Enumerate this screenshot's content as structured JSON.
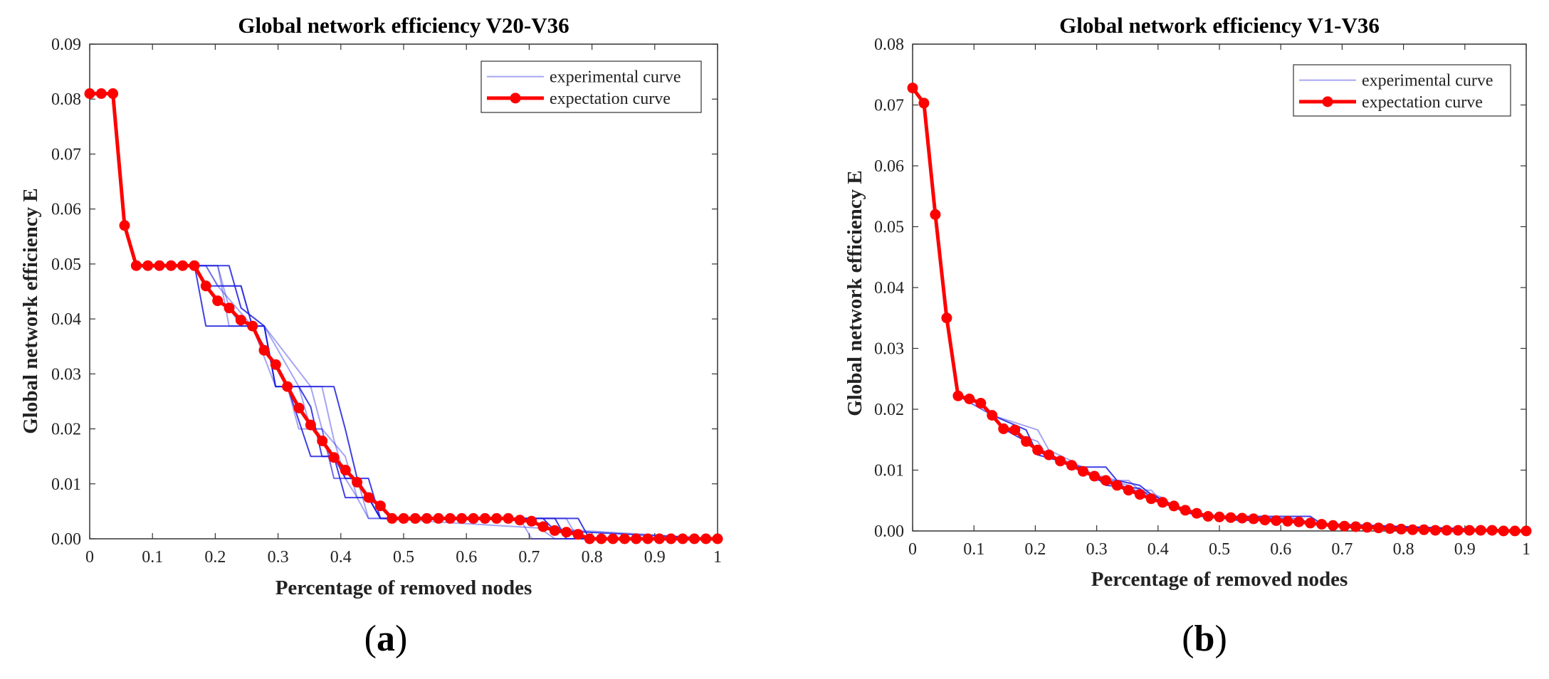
{
  "chart_data": [
    {
      "type": "line",
      "panel_label": "a",
      "title": "Global network efficiency  V20-V36",
      "xlabel": "Percentage of removed nodes",
      "ylabel": "Global network efficiency E",
      "xlim": [
        0,
        1
      ],
      "ylim": [
        0,
        0.09
      ],
      "xticks": [
        "0",
        "0.1",
        "0.2",
        "0.3",
        "0.4",
        "0.5",
        "0.6",
        "0.7",
        "0.8",
        "0.9",
        "1"
      ],
      "yticks": [
        "0.00",
        "0.01",
        "0.02",
        "0.03",
        "0.04",
        "0.05",
        "0.06",
        "0.07",
        "0.08",
        "0.09"
      ],
      "legend": {
        "position": "top-right",
        "entries": [
          "experimental curve",
          "expectation curve"
        ]
      },
      "colors": {
        "experimental": "#1f1fe0",
        "expectation": "#ff0000"
      },
      "series": [
        {
          "name": "expectation curve",
          "x": [
            0,
            0.0185,
            0.037,
            0.0556,
            0.0741,
            0.0926,
            0.1111,
            0.1296,
            0.1481,
            0.1667,
            0.1852,
            0.2037,
            0.2222,
            0.2407,
            0.2593,
            0.2778,
            0.2963,
            0.3148,
            0.3333,
            0.3519,
            0.3704,
            0.3889,
            0.4074,
            0.4259,
            0.4444,
            0.463,
            0.4815,
            0.5,
            0.5185,
            0.537,
            0.5556,
            0.5741,
            0.5926,
            0.6111,
            0.6296,
            0.6481,
            0.6667,
            0.6852,
            0.7037,
            0.7222,
            0.7407,
            0.7593,
            0.7778,
            0.7963,
            0.8148,
            0.8333,
            0.8519,
            0.8704,
            0.8889,
            0.9074,
            0.9259,
            0.9444,
            0.963,
            0.9815,
            1.0
          ],
          "y": [
            0.081,
            0.081,
            0.081,
            0.057,
            0.0497,
            0.0497,
            0.0497,
            0.0497,
            0.0497,
            0.0497,
            0.046,
            0.0433,
            0.042,
            0.0398,
            0.0387,
            0.0343,
            0.0317,
            0.0277,
            0.0238,
            0.0207,
            0.0178,
            0.0148,
            0.0125,
            0.0103,
            0.0075,
            0.006,
            0.0037,
            0.0037,
            0.0037,
            0.0037,
            0.0037,
            0.0037,
            0.0037,
            0.0037,
            0.0037,
            0.0037,
            0.0037,
            0.0034,
            0.0032,
            0.0022,
            0.0015,
            0.0012,
            0.0008,
            0,
            0,
            0,
            0,
            0,
            0,
            0,
            0,
            0,
            0,
            0,
            0
          ]
        },
        {
          "name": "experimental curve",
          "runs": [
            {
              "x": [
                0,
                0.037,
                0.055,
                0.074,
                0.167,
                0.185,
                0.278,
                0.296,
                0.315,
                0.352,
                0.389,
                0.407,
                0.444,
                0.463,
                0.667,
                0.685,
                0.778,
                0.796,
                1.0
              ],
              "y": [
                0.081,
                0.081,
                0.057,
                0.0497,
                0.0497,
                0.0387,
                0.0387,
                0.0277,
                0.0277,
                0.015,
                0.015,
                0.011,
                0.011,
                0.0037,
                0.0037,
                0.0037,
                0.0037,
                0,
                0
              ]
            },
            {
              "x": [
                0,
                0.037,
                0.055,
                0.074,
                0.185,
                0.204,
                0.259,
                0.278,
                0.333,
                0.352,
                0.37,
                0.389,
                0.426,
                0.444,
                0.463,
                0.685,
                0.704,
                0.722,
                1.0
              ],
              "y": [
                0.081,
                0.081,
                0.057,
                0.0497,
                0.0497,
                0.046,
                0.0387,
                0.0387,
                0.0277,
                0.02,
                0.02,
                0.011,
                0.011,
                0.0075,
                0.0037,
                0.0037,
                0,
                0,
                0
              ]
            },
            {
              "x": [
                0,
                0.037,
                0.055,
                0.074,
                0.204,
                0.222,
                0.241,
                0.259,
                0.296,
                0.315,
                0.37,
                0.389,
                0.407,
                0.426,
                0.444,
                0.704,
                0.722,
                0.759,
                0.778,
                1.0
              ],
              "y": [
                0.081,
                0.081,
                0.057,
                0.0497,
                0.0497,
                0.042,
                0.0387,
                0.0387,
                0.0277,
                0.0277,
                0.0277,
                0.018,
                0.011,
                0.0075,
                0.0037,
                0.0037,
                0.0037,
                0.0037,
                0,
                0
              ]
            },
            {
              "x": [
                0,
                0.037,
                0.055,
                0.074,
                0.167,
                0.185,
                0.241,
                0.259,
                0.315,
                0.333,
                0.352,
                0.37,
                0.389,
                0.407,
                0.444,
                0.463,
                0.722,
                0.741,
                1.0
              ],
              "y": [
                0.081,
                0.081,
                0.057,
                0.0497,
                0.0497,
                0.046,
                0.046,
                0.0387,
                0.0277,
                0.0277,
                0.024,
                0.015,
                0.015,
                0.0075,
                0.0075,
                0.0037,
                0.0037,
                0.0015,
                0
              ]
            },
            {
              "x": [
                0,
                0.037,
                0.055,
                0.074,
                0.204,
                0.222,
                0.259,
                0.278,
                0.352,
                0.37,
                0.407,
                0.426,
                0.444,
                0.463,
                0.704,
                0.722,
                0.741,
                1.0
              ],
              "y": [
                0.081,
                0.081,
                0.057,
                0.0497,
                0.0497,
                0.0387,
                0.0387,
                0.0387,
                0.0277,
                0.02,
                0.015,
                0.0075,
                0.0075,
                0.0037,
                0.0037,
                0.0015,
                0,
                0
              ]
            },
            {
              "x": [
                0,
                0.037,
                0.055,
                0.074,
                0.185,
                0.204,
                0.241,
                0.259,
                0.278,
                0.296,
                0.315,
                0.333,
                0.37,
                0.389,
                0.426,
                0.444,
                0.463,
                1.0
              ],
              "y": [
                0.081,
                0.081,
                0.057,
                0.0497,
                0.0497,
                0.046,
                0.046,
                0.0387,
                0.0387,
                0.0277,
                0.0277,
                0.02,
                0.02,
                0.011,
                0.011,
                0.0037,
                0.0037,
                0
              ]
            },
            {
              "x": [
                0,
                0.037,
                0.055,
                0.074,
                0.222,
                0.241,
                0.278,
                0.296,
                0.389,
                0.407,
                0.426,
                0.444,
                0.463,
                0.741,
                0.759,
                1.0
              ],
              "y": [
                0.081,
                0.081,
                0.057,
                0.0497,
                0.0497,
                0.042,
                0.0387,
                0.0277,
                0.0277,
                0.02,
                0.011,
                0.0075,
                0.0037,
                0.0037,
                0,
                0
              ]
            }
          ]
        }
      ]
    },
    {
      "type": "line",
      "panel_label": "b",
      "title": "Global network efficiency  V1-V36",
      "xlabel": "Percentage of removed nodes",
      "ylabel": "Global network efficiency E",
      "xlim": [
        0,
        1
      ],
      "ylim": [
        0,
        0.08
      ],
      "xticks": [
        "0",
        "0.1",
        "0.2",
        "0.3",
        "0.4",
        "0.5",
        "0.6",
        "0.7",
        "0.8",
        "0.9",
        "1"
      ],
      "yticks": [
        "0.00",
        "0.01",
        "0.02",
        "0.03",
        "0.04",
        "0.05",
        "0.06",
        "0.07",
        "0.08"
      ],
      "legend": {
        "position": "top-right",
        "entries": [
          "experimental curve",
          "expectation curve"
        ]
      },
      "colors": {
        "experimental": "#1f1fe0",
        "expectation": "#ff0000"
      },
      "series": [
        {
          "name": "expectation curve",
          "x": [
            0,
            0.0185,
            0.037,
            0.0556,
            0.0741,
            0.0926,
            0.1111,
            0.1296,
            0.1481,
            0.1667,
            0.1852,
            0.2037,
            0.2222,
            0.2407,
            0.2593,
            0.2778,
            0.2963,
            0.3148,
            0.3333,
            0.3519,
            0.3704,
            0.3889,
            0.4074,
            0.4259,
            0.4444,
            0.463,
            0.4815,
            0.5,
            0.5185,
            0.537,
            0.5556,
            0.5741,
            0.5926,
            0.6111,
            0.6296,
            0.6481,
            0.6667,
            0.6852,
            0.7037,
            0.7222,
            0.7407,
            0.7593,
            0.7778,
            0.7963,
            0.8148,
            0.8333,
            0.8519,
            0.8704,
            0.8889,
            0.9074,
            0.9259,
            0.9444,
            0.963,
            0.9815,
            1.0
          ],
          "y": [
            0.0728,
            0.0703,
            0.052,
            0.035,
            0.0222,
            0.0217,
            0.021,
            0.019,
            0.0168,
            0.0166,
            0.0147,
            0.0133,
            0.0125,
            0.0115,
            0.0108,
            0.0098,
            0.009,
            0.0083,
            0.0075,
            0.0067,
            0.006,
            0.0053,
            0.0047,
            0.0041,
            0.0034,
            0.0029,
            0.0024,
            0.0023,
            0.0022,
            0.0021,
            0.002,
            0.0018,
            0.0017,
            0.0016,
            0.0015,
            0.0013,
            0.0011,
            0.0009,
            0.0008,
            0.0007,
            0.0006,
            0.0005,
            0.0004,
            0.0003,
            0.0002,
            0.0002,
            0.0001,
            0.0001,
            0.0001,
            0.0001,
            0.0001,
            0.0001,
            0,
            0,
            0
          ]
        },
        {
          "name": "experimental curve",
          "runs": [
            {
              "x": [
                0,
                0.0185,
                0.037,
                0.0556,
                0.0741,
                0.111,
                0.13,
                0.185,
                0.204,
                0.241,
                0.259,
                0.315,
                0.333,
                0.37,
                0.389,
                0.426,
                0.444,
                0.463,
                0.648,
                0.667,
                1.0
              ],
              "y": [
                0.0728,
                0.0703,
                0.052,
                0.035,
                0.0222,
                0.021,
                0.019,
                0.0166,
                0.0125,
                0.0115,
                0.0105,
                0.0105,
                0.0083,
                0.0075,
                0.006,
                0.0042,
                0.0034,
                0.0024,
                0.0024,
                0.0011,
                0
              ]
            },
            {
              "x": [
                0,
                0.0185,
                0.037,
                0.0556,
                0.0741,
                0.13,
                0.148,
                0.167,
                0.185,
                0.222,
                0.278,
                0.296,
                0.352,
                0.37,
                0.407,
                0.426,
                0.463,
                0.481,
                0.63,
                0.648,
                1.0
              ],
              "y": [
                0.0728,
                0.0703,
                0.052,
                0.035,
                0.0222,
                0.019,
                0.0168,
                0.0166,
                0.0147,
                0.0125,
                0.0105,
                0.0083,
                0.0083,
                0.0067,
                0.0055,
                0.004,
                0.0029,
                0.0024,
                0.002,
                0.0013,
                0
              ]
            },
            {
              "x": [
                0,
                0.0185,
                0.037,
                0.0556,
                0.0741,
                0.111,
                0.13,
                0.204,
                0.222,
                0.259,
                0.278,
                0.333,
                0.352,
                0.389,
                0.407,
                0.444,
                0.463,
                0.611,
                0.63,
                0.7,
                1.0
              ],
              "y": [
                0.0728,
                0.0703,
                0.052,
                0.035,
                0.0222,
                0.021,
                0.019,
                0.0166,
                0.0133,
                0.0115,
                0.0098,
                0.0083,
                0.0067,
                0.0067,
                0.0047,
                0.0034,
                0.0024,
                0.002,
                0.0015,
                0.0008,
                0
              ]
            },
            {
              "x": [
                0,
                0.0185,
                0.037,
                0.0556,
                0.0741,
                0.111,
                0.148,
                0.185,
                0.222,
                0.241,
                0.296,
                0.315,
                0.37,
                0.389,
                0.426,
                0.444,
                0.5,
                0.52,
                0.648,
                0.667,
                1.0
              ],
              "y": [
                0.0728,
                0.0703,
                0.052,
                0.035,
                0.0222,
                0.021,
                0.0168,
                0.0147,
                0.012,
                0.0115,
                0.009,
                0.0075,
                0.007,
                0.0055,
                0.004,
                0.003,
                0.0022,
                0.0018,
                0.0015,
                0.001,
                0
              ]
            },
            {
              "x": [
                0,
                0.0185,
                0.037,
                0.0556,
                0.0741,
                0.13,
                0.148,
                0.204,
                0.222,
                0.278,
                0.296,
                0.352,
                0.37,
                0.407,
                0.426,
                0.463,
                0.481,
                0.63,
                0.648,
                1.0
              ],
              "y": [
                0.0728,
                0.0703,
                0.052,
                0.035,
                0.0222,
                0.019,
                0.0168,
                0.0147,
                0.012,
                0.0105,
                0.009,
                0.0075,
                0.006,
                0.005,
                0.004,
                0.0026,
                0.0024,
                0.002,
                0.0013,
                0
              ]
            }
          ]
        }
      ]
    }
  ]
}
